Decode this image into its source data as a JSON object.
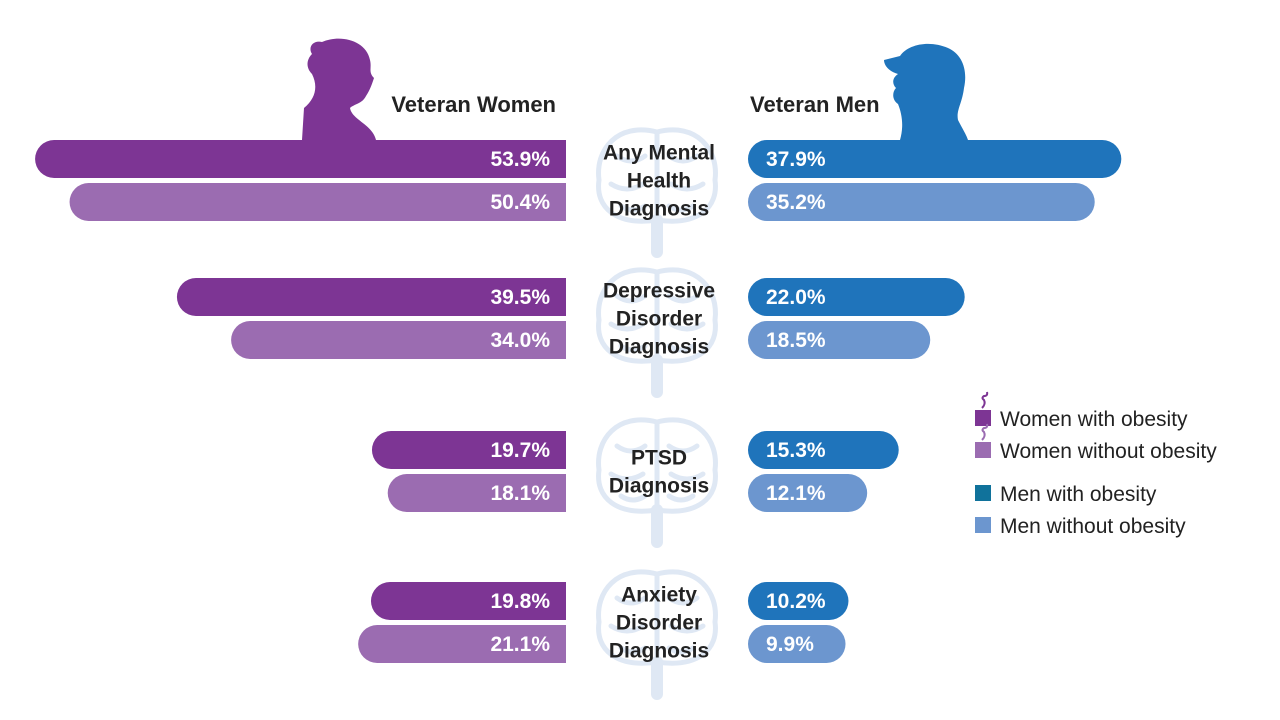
{
  "chart_data": {
    "type": "bar",
    "orientation": "horizontal-butterfly",
    "groups": {
      "women": "Veteran Women",
      "men": "Veteran Men"
    },
    "categories": [
      [
        "Any Mental",
        "Health",
        "Diagnosis"
      ],
      [
        "Depressive",
        "Disorder",
        "Diagnosis"
      ],
      [
        "PTSD",
        "Diagnosis"
      ],
      [
        "Anxiety",
        "Disorder",
        "Diagnosis"
      ]
    ],
    "series": [
      {
        "name": "Women with obesity",
        "side": "women",
        "color": "#7d3594",
        "values": [
          53.9,
          39.5,
          19.7,
          19.8
        ]
      },
      {
        "name": "Women without obesity",
        "side": "women",
        "color": "#9b6cb1",
        "values": [
          50.4,
          34.0,
          18.1,
          21.1
        ]
      },
      {
        "name": "Men with obesity",
        "side": "men",
        "color": "#1f74bb",
        "values": [
          37.9,
          22.0,
          15.3,
          10.2
        ]
      },
      {
        "name": "Men without obesity",
        "side": "men",
        "color": "#6c96cf",
        "values": [
          35.2,
          18.5,
          12.1,
          9.9
        ]
      }
    ],
    "value_suffix": "%",
    "legend_position": "right",
    "colors": {
      "women_with": "#7d3594",
      "women_without": "#9b6cb1",
      "men_with": "#1f74bb",
      "men_without": "#6c96cf",
      "legend_men_with": "#10729b",
      "brain": "#dfe8f4"
    },
    "icons": [
      "woman-silhouette-icon",
      "man-silhouette-icon",
      "brain-icon"
    ]
  }
}
